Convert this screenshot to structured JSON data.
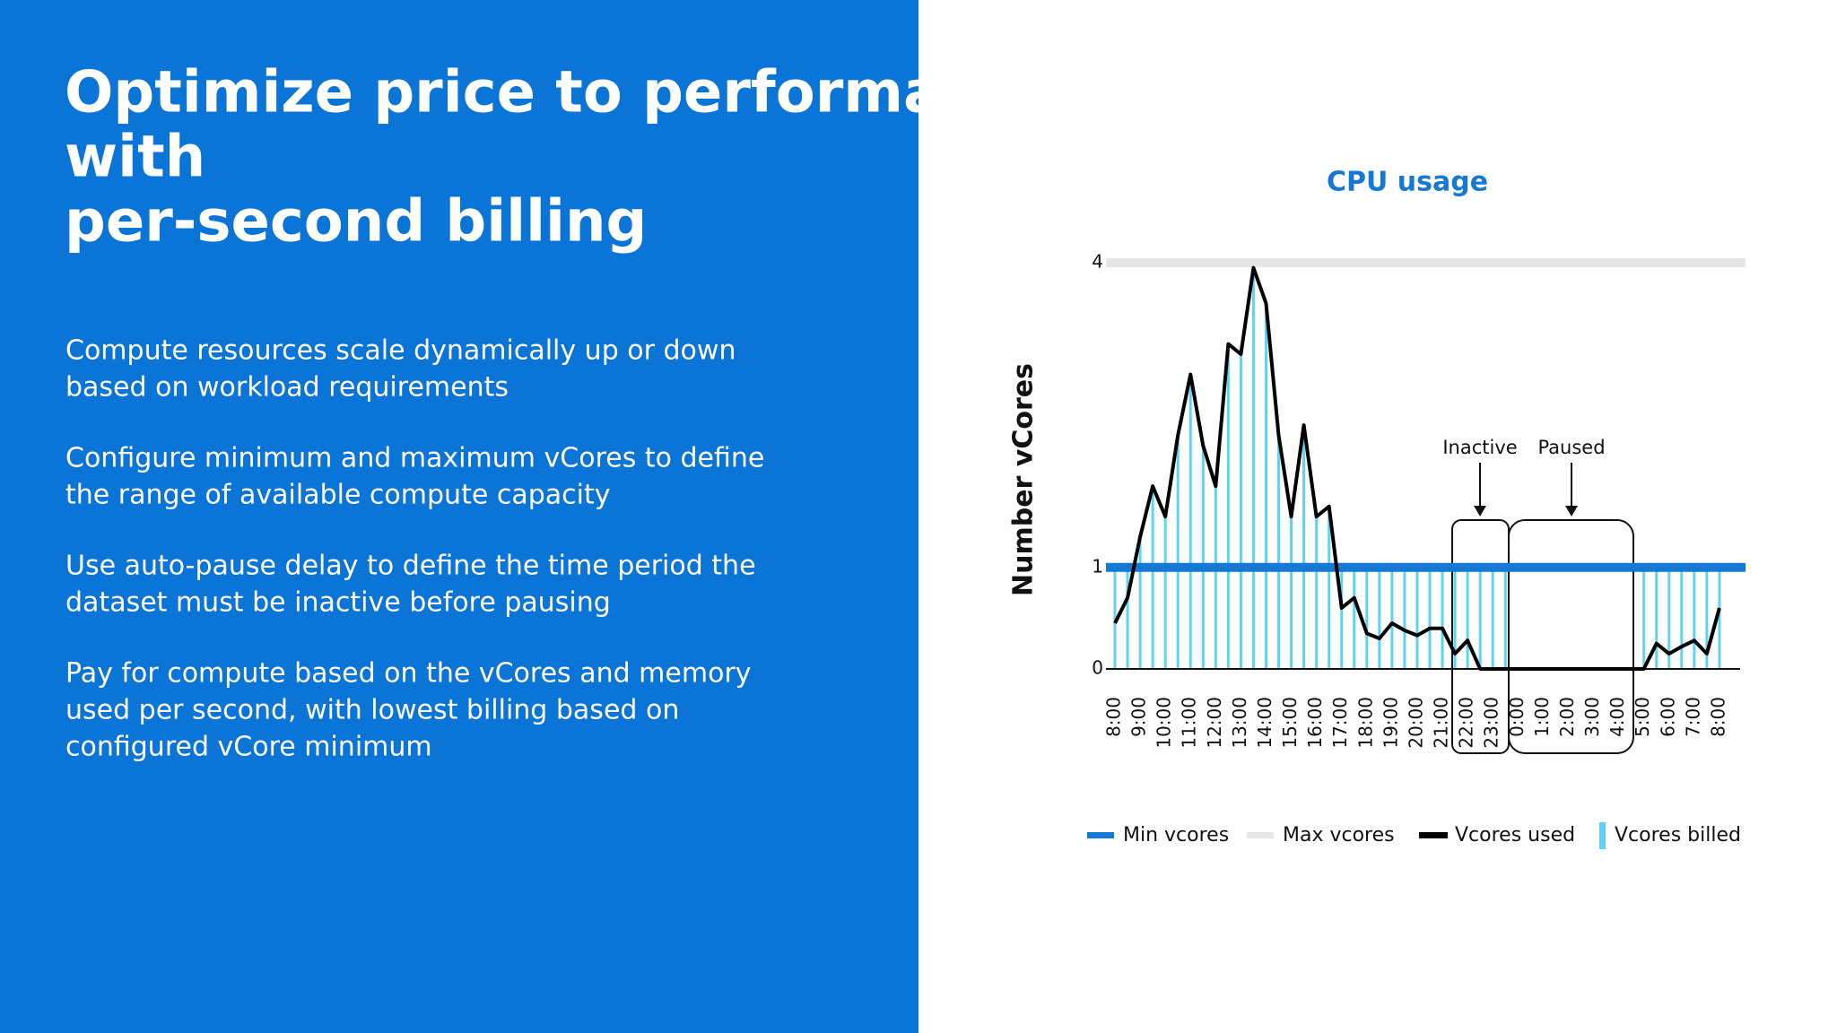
{
  "slide": {
    "title_lines": [
      "Optimize price to performance",
      "with",
      "per-second billing"
    ],
    "paragraphs": [
      [
        "Compute resources scale dynamically up or down",
        "based on workload requirements"
      ],
      [
        "Configure minimum and maximum vCores to define",
        "the range of available compute capacity"
      ],
      [
        "Use auto-pause delay to define the time period the",
        "dataset must be inactive before pausing"
      ],
      [
        "Pay for compute based on the vCores and memory",
        "used per second, with lowest billing based on",
        "configured vCore minimum"
      ]
    ]
  },
  "chart_data": {
    "type": "line",
    "title": "CPU usage",
    "y_label": "Number vCores",
    "categories": [
      "8:00",
      null,
      "9:00",
      null,
      "10:00",
      null,
      "11:00",
      null,
      "12:00",
      null,
      "13:00",
      null,
      "14:00",
      null,
      "15:00",
      null,
      "16:00",
      null,
      "17:00",
      null,
      "18:00",
      null,
      "19:00",
      null,
      "20:00",
      null,
      "21:00",
      null,
      "22:00",
      null,
      "23:00",
      null,
      "0:00",
      null,
      "1:00",
      null,
      "2:00",
      null,
      "3:00",
      null,
      "4:00",
      null,
      "5:00",
      null,
      "6:00",
      null,
      "7:00",
      null,
      "8:00"
    ],
    "ylim": [
      0,
      4
    ],
    "yticks": [
      0,
      1,
      4
    ],
    "series": [
      {
        "name": "Min vcores",
        "color": "#1478d4",
        "value": 1
      },
      {
        "name": "Max vcores",
        "color": "#e6e6e6",
        "value": 4
      },
      {
        "name": "Vcores used",
        "color": "#000000",
        "values": [
          0.45,
          0.7,
          1.3,
          1.8,
          1.5,
          2.3,
          2.9,
          2.2,
          1.8,
          3.2,
          3.1,
          3.95,
          3.6,
          2.3,
          1.5,
          2.4,
          1.5,
          1.6,
          0.6,
          0.7,
          0.35,
          0.3,
          0.45,
          0.38,
          0.33,
          0.4,
          0.4,
          0.15,
          0.28,
          0,
          0,
          0,
          0,
          0,
          0,
          0,
          0,
          0,
          0,
          0,
          0,
          0,
          0,
          0.25,
          0.15,
          0.22,
          0.28,
          0.15,
          0.6
        ]
      },
      {
        "name": "Vcores billed",
        "color": "#5ed4f2",
        "values": [
          1,
          1,
          1.3,
          1.8,
          1.5,
          2.3,
          2.9,
          2.2,
          1.8,
          3.2,
          3.1,
          3.95,
          3.6,
          2.3,
          1.5,
          2.4,
          1.5,
          1.6,
          1,
          1,
          1,
          1,
          1,
          1,
          1,
          1,
          1,
          1,
          1,
          1,
          1,
          1,
          0,
          0,
          0,
          0,
          0,
          0,
          0,
          0,
          0,
          0,
          1,
          1,
          1,
          1,
          1,
          1,
          1
        ]
      }
    ],
    "annotations": [
      "Inactive",
      "Paused"
    ]
  }
}
